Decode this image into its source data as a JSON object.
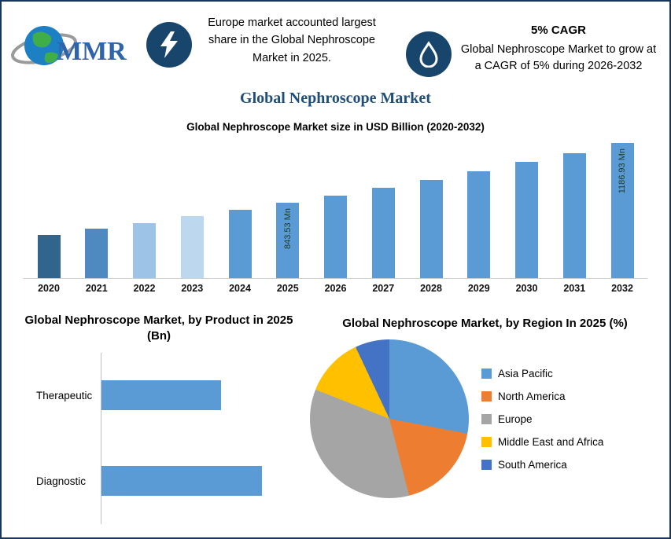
{
  "header": {
    "logo_text": "MMR",
    "callout_europe": "Europe market accounted largest share in the Global Nephroscope Market in 2025.",
    "cagr_title": "5% CAGR",
    "cagr_text": "Global Nephroscope Market to grow at a CAGR of 5% during 2026-2032"
  },
  "page_title": "Global Nephroscope Market",
  "colors": {
    "accent_blue": "#5B9BD5",
    "dark_blue": "#1F4E79",
    "icon_circle": "#17456B",
    "orange": "#ED7D31",
    "gray": "#A5A5A5",
    "yellow": "#FFC000",
    "navy": "#4472C4"
  },
  "chart_data": [
    {
      "type": "bar",
      "title": "Global Nephroscope Market size in USD Billion (2020-2032)",
      "categories": [
        "2020",
        "2021",
        "2022",
        "2023",
        "2024",
        "2025",
        "2026",
        "2027",
        "2028",
        "2029",
        "2030",
        "2031",
        "2032"
      ],
      "values": [
        660,
        695,
        729,
        766,
        803,
        843.53,
        885.7,
        930,
        976.5,
        1025.3,
        1076.6,
        1130.4,
        1186.93
      ],
      "bar_labels": {
        "2025": "843.53 Mn",
        "2032": "1186.93 Mn"
      },
      "colors": [
        "#31658E",
        "#4E8AC0",
        "#9DC3E6",
        "#BDD7EE",
        "#5B9BD5",
        "#5B9BD5",
        "#5B9BD5",
        "#5B9BD5",
        "#5B9BD5",
        "#5B9BD5",
        "#5B9BD5",
        "#5B9BD5",
        "#5B9BD5"
      ],
      "xlabel": "",
      "ylabel": "",
      "grid": false,
      "legend": false
    },
    {
      "type": "bar",
      "orientation": "horizontal",
      "title": "Global Nephroscope Market, by Product  in 2025 (Bn)",
      "categories": [
        "Therapeutic",
        "Diagnostic"
      ],
      "values": [
        0.35,
        0.47
      ],
      "color": "#5B9BD5",
      "grid": false,
      "legend": false
    },
    {
      "type": "pie",
      "title": "Global Nephroscope Market, by Region In 2025 (%)",
      "labels": [
        "Asia Pacific",
        "North America",
        "Europe",
        "Middle East and Africa",
        "South America"
      ],
      "values": [
        28,
        18,
        35,
        12,
        7
      ],
      "colors": [
        "#5B9BD5",
        "#ED7D31",
        "#A5A5A5",
        "#FFC000",
        "#4472C4"
      ],
      "legend_position": "right"
    }
  ]
}
